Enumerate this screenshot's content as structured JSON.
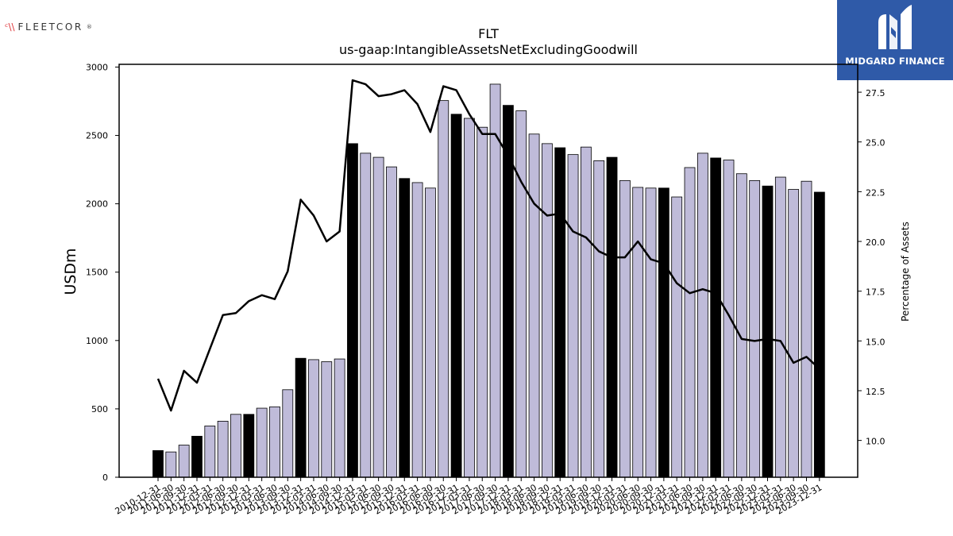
{
  "logos": {
    "left_text": "FLEETCOR",
    "left_mark": "®",
    "right_text": "MIDGARD FINANCE",
    "right_icon": "midgard-m-icon"
  },
  "colors": {
    "highlight_bar": "#000000",
    "normal_bar": "#bfbbd9",
    "line": "#000000",
    "brand_blue": "#2f5aa8"
  },
  "chart_data": {
    "type": "bar",
    "title": "FLT",
    "subtitle": "us-gaap:IntangibleAssetsNetExcludingGoodwill",
    "ylabel": "USDm",
    "y2label": "Percentage of Assets",
    "ylim": [
      0,
      3020
    ],
    "y2lim": [
      8.15,
      28.9
    ],
    "yticks": [
      0,
      500,
      1000,
      1500,
      2000,
      2500,
      3000
    ],
    "y2ticks": [
      "10.0",
      "12.5",
      "15.0",
      "17.5",
      "20.0",
      "22.5",
      "25.0",
      "27.5"
    ],
    "categories": [
      "2010-12-31",
      "2011-06-30",
      "2011-09-30",
      "2011-12-31",
      "2012-03-31",
      "2012-06-30",
      "2012-09-30",
      "2012-12-31",
      "2013-03-31",
      "2013-06-30",
      "2013-09-30",
      "2013-12-31",
      "2014-03-31",
      "2014-06-30",
      "2014-09-30",
      "2014-12-31",
      "2015-03-31",
      "2015-06-30",
      "2015-09-30",
      "2015-12-31",
      "2016-03-31",
      "2016-06-30",
      "2016-09-30",
      "2016-12-31",
      "2017-03-31",
      "2017-06-30",
      "2017-09-30",
      "2017-12-31",
      "2018-03-31",
      "2018-06-30",
      "2018-09-30",
      "2018-12-31",
      "2019-03-31",
      "2019-06-30",
      "2019-09-30",
      "2019-12-31",
      "2020-03-31",
      "2020-06-30",
      "2020-09-30",
      "2020-12-31",
      "2021-03-31",
      "2021-06-30",
      "2021-09-30",
      "2021-12-31",
      "2022-03-31",
      "2022-06-30",
      "2022-09-30",
      "2022-12-31",
      "2023-03-31",
      "2023-06-30",
      "2023-09-30",
      "2023-12-31"
    ],
    "series": [
      {
        "kind": "bar",
        "values": [
          195,
          185,
          235,
          300,
          375,
          410,
          460,
          460,
          505,
          515,
          640,
          870,
          860,
          845,
          865,
          2440,
          2370,
          2340,
          2270,
          2185,
          2155,
          2115,
          2755,
          2655,
          2625,
          2560,
          2875,
          2720,
          2680,
          2510,
          2440,
          2410,
          2360,
          2415,
          2315,
          2340,
          2170,
          2120,
          2115,
          2115,
          2050,
          2265,
          2370,
          2335,
          2320,
          2220,
          2170,
          2130,
          2195,
          2105,
          2165,
          2085
        ],
        "highlight": [
          true,
          false,
          false,
          true,
          false,
          false,
          false,
          true,
          false,
          false,
          false,
          true,
          false,
          false,
          false,
          true,
          false,
          false,
          false,
          true,
          false,
          false,
          false,
          true,
          false,
          false,
          false,
          true,
          false,
          false,
          false,
          true,
          false,
          false,
          false,
          true,
          false,
          false,
          false,
          true,
          false,
          false,
          false,
          true,
          false,
          false,
          false,
          true,
          false,
          false,
          false,
          true
        ]
      },
      {
        "kind": "line",
        "axis": "right",
        "values": [
          13.1,
          11.5,
          13.5,
          12.9,
          14.6,
          16.3,
          16.4,
          17.0,
          17.3,
          17.1,
          18.5,
          22.1,
          21.3,
          20.0,
          20.5,
          28.1,
          27.9,
          27.3,
          27.4,
          27.6,
          26.9,
          25.5,
          27.8,
          27.6,
          26.4,
          25.4,
          25.4,
          24.3,
          23.0,
          21.9,
          21.3,
          21.4,
          20.5,
          20.2,
          19.5,
          19.2,
          19.2,
          20.0,
          19.1,
          18.9,
          17.9,
          17.4,
          17.6,
          17.4,
          16.3,
          15.1,
          15.0,
          15.1,
          15.0,
          13.9,
          14.2,
          13.6
        ]
      }
    ]
  }
}
